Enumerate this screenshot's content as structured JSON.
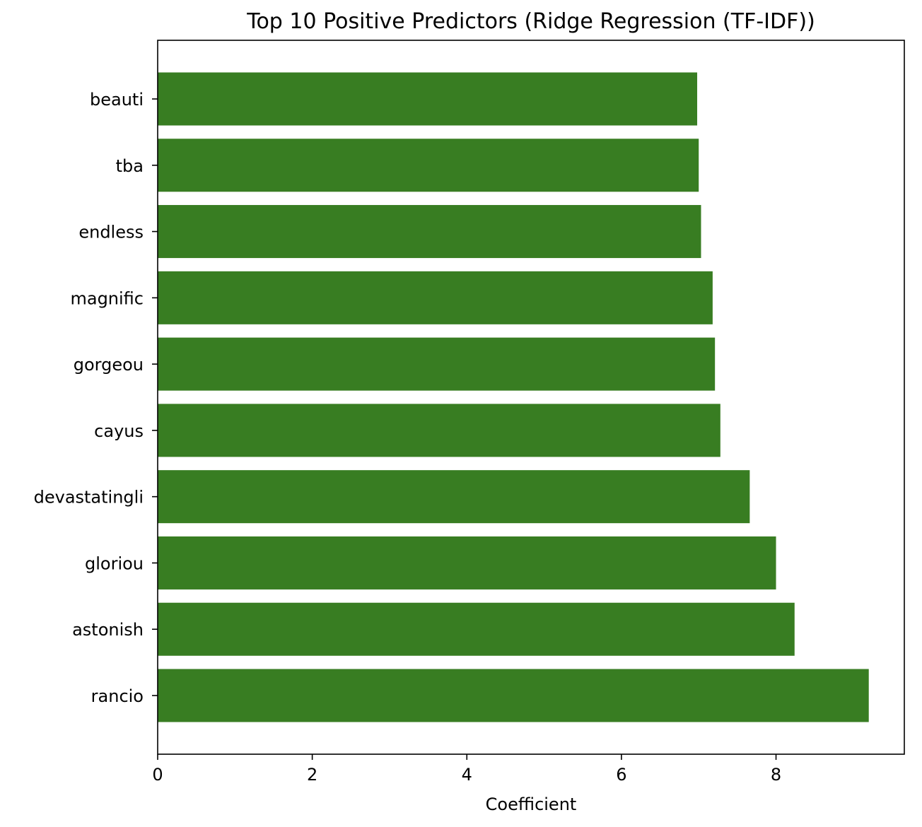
{
  "chart_data": {
    "type": "bar",
    "orientation": "horizontal",
    "title": "Top 10 Positive Predictors (Ridge Regression (TF-IDF))",
    "xlabel": "Coefficient",
    "ylabel": "",
    "categories": [
      "rancio",
      "astonish",
      "gloriou",
      "devastatingli",
      "cayus",
      "gorgeou",
      "magnific",
      "endless",
      "tba",
      "beauti"
    ],
    "values": [
      9.2,
      8.24,
      8.0,
      7.66,
      7.28,
      7.21,
      7.18,
      7.03,
      7.0,
      6.98
    ],
    "xlim": [
      0,
      9.66
    ],
    "xticks": [
      0,
      2,
      4,
      6,
      8
    ],
    "bar_color": "#387d22",
    "grid": false,
    "legend": "none"
  }
}
